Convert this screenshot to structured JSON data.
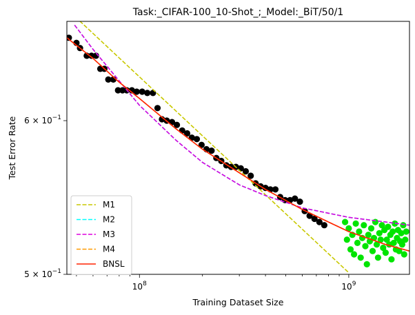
{
  "chart_data": {
    "type": "scatter",
    "title": "Task:_CIFAR-100_10-Shot_;_Model:_BiT/50/1",
    "xlabel": "Training Dataset Size",
    "ylabel": "Test Error Rate",
    "xscale": "log",
    "yscale": "log",
    "xlim": [
      45000000,
      1950000000
    ],
    "ylim": [
      0.5,
      0.675
    ],
    "x_ticks": [
      {
        "value": 100000000,
        "label": "10",
        "exp": "8"
      },
      {
        "value": 1000000000,
        "label": "10",
        "exp": "9"
      }
    ],
    "y_ticks": [
      {
        "value": 0.5,
        "label": "5 × 10",
        "exp": "−1"
      },
      {
        "value": 0.6,
        "label": "6 × 10",
        "exp": "−1"
      }
    ],
    "legend_position": "lower-left",
    "grid": false,
    "series": [
      {
        "name": "M1",
        "kind": "line",
        "style": "dashed",
        "color": "#c8c800",
        "points": [
          [
            45000000,
            0.685
          ],
          [
            1000000000,
            0.501
          ]
        ]
      },
      {
        "name": "M2",
        "kind": "line",
        "style": "dashed",
        "color": "#00ffff",
        "points": [
          [
            49000000,
            0.672
          ],
          [
            60000000,
            0.653
          ],
          [
            80000000,
            0.629
          ],
          [
            100000000,
            0.611
          ],
          [
            150000000,
            0.586
          ],
          [
            200000000,
            0.571
          ],
          [
            300000000,
            0.556
          ],
          [
            400000000,
            0.549
          ],
          [
            600000000,
            0.541
          ],
          [
            1000000000,
            0.535
          ],
          [
            1500000000,
            0.532
          ],
          [
            1950000000,
            0.53
          ]
        ]
      },
      {
        "name": "M3",
        "kind": "line",
        "style": "dashed",
        "color": "#dd00dd",
        "points": [
          [
            49000000,
            0.672
          ],
          [
            60000000,
            0.653
          ],
          [
            80000000,
            0.629
          ],
          [
            100000000,
            0.611
          ],
          [
            150000000,
            0.586
          ],
          [
            200000000,
            0.571
          ],
          [
            300000000,
            0.556
          ],
          [
            400000000,
            0.549
          ],
          [
            600000000,
            0.541
          ],
          [
            1000000000,
            0.535
          ],
          [
            1500000000,
            0.532
          ],
          [
            1950000000,
            0.53
          ]
        ]
      },
      {
        "name": "M4",
        "kind": "line",
        "style": "dashed",
        "color": "#ff9900",
        "points": [
          [
            45000000,
            0.662
          ],
          [
            60000000,
            0.646
          ],
          [
            80000000,
            0.628
          ],
          [
            100000000,
            0.616
          ],
          [
            150000000,
            0.594
          ],
          [
            200000000,
            0.58
          ],
          [
            300000000,
            0.564
          ],
          [
            400000000,
            0.553
          ],
          [
            600000000,
            0.54
          ],
          [
            800000000,
            0.532
          ],
          [
            1000000000,
            0.526
          ],
          [
            1500000000,
            0.518
          ],
          [
            1950000000,
            0.514
          ]
        ]
      },
      {
        "name": "BNSL",
        "kind": "line",
        "style": "solid",
        "color": "#ff2200",
        "points": [
          [
            45000000,
            0.662
          ],
          [
            60000000,
            0.646
          ],
          [
            80000000,
            0.628
          ],
          [
            100000000,
            0.616
          ],
          [
            150000000,
            0.594
          ],
          [
            200000000,
            0.58
          ],
          [
            300000000,
            0.564
          ],
          [
            400000000,
            0.553
          ],
          [
            600000000,
            0.54
          ],
          [
            800000000,
            0.532
          ],
          [
            1000000000,
            0.526
          ],
          [
            1500000000,
            0.518
          ],
          [
            1950000000,
            0.514
          ]
        ]
      },
      {
        "name": "",
        "kind": "scatter",
        "color": "#000000",
        "points": [
          [
            46000000,
            0.662
          ],
          [
            50000000,
            0.658
          ],
          [
            52000000,
            0.654
          ],
          [
            56000000,
            0.648
          ],
          [
            59000000,
            0.648
          ],
          [
            62000000,
            0.648
          ],
          [
            65000000,
            0.638
          ],
          [
            68000000,
            0.638
          ],
          [
            71000000,
            0.63
          ],
          [
            75000000,
            0.63
          ],
          [
            79000000,
            0.622
          ],
          [
            83000000,
            0.622
          ],
          [
            87000000,
            0.622
          ],
          [
            92000000,
            0.622
          ],
          [
            97000000,
            0.621
          ],
          [
            103000000,
            0.621
          ],
          [
            109000000,
            0.62
          ],
          [
            116000000,
            0.62
          ],
          [
            122000000,
            0.609
          ],
          [
            128000000,
            0.601
          ],
          [
            135000000,
            0.6
          ],
          [
            143000000,
            0.599
          ],
          [
            151000000,
            0.597
          ],
          [
            160000000,
            0.593
          ],
          [
            169000000,
            0.591
          ],
          [
            178000000,
            0.588
          ],
          [
            188000000,
            0.587
          ],
          [
            198000000,
            0.583
          ],
          [
            209000000,
            0.58
          ],
          [
            221000000,
            0.579
          ],
          [
            233000000,
            0.574
          ],
          [
            246000000,
            0.572
          ],
          [
            260000000,
            0.569
          ],
          [
            274000000,
            0.568
          ],
          [
            289000000,
            0.568
          ],
          [
            305000000,
            0.567
          ],
          [
            322000000,
            0.565
          ],
          [
            340000000,
            0.562
          ],
          [
            359000000,
            0.557
          ],
          [
            379000000,
            0.555
          ],
          [
            400000000,
            0.554
          ],
          [
            422000000,
            0.553
          ],
          [
            446000000,
            0.553
          ],
          [
            470000000,
            0.548
          ],
          [
            496000000,
            0.546
          ],
          [
            524000000,
            0.546
          ],
          [
            553000000,
            0.547
          ],
          [
            584000000,
            0.545
          ],
          [
            616000000,
            0.539
          ],
          [
            650000000,
            0.536
          ],
          [
            686000000,
            0.534
          ],
          [
            724000000,
            0.532
          ],
          [
            764000000,
            0.53
          ]
        ]
      },
      {
        "name": "",
        "kind": "scatter",
        "color": "#00e400",
        "points": [
          [
            960000000,
            0.532
          ],
          [
            980000000,
            0.521
          ],
          [
            1000000000,
            0.528
          ],
          [
            1020000000,
            0.515
          ],
          [
            1040000000,
            0.524
          ],
          [
            1060000000,
            0.512
          ],
          [
            1080000000,
            0.531
          ],
          [
            1100000000,
            0.519
          ],
          [
            1120000000,
            0.526
          ],
          [
            1140000000,
            0.51
          ],
          [
            1160000000,
            0.522
          ],
          [
            1180000000,
            0.53
          ],
          [
            1200000000,
            0.517
          ],
          [
            1220000000,
            0.506
          ],
          [
            1240000000,
            0.524
          ],
          [
            1260000000,
            0.52
          ],
          [
            1280000000,
            0.528
          ],
          [
            1300000000,
            0.514
          ],
          [
            1320000000,
            0.522
          ],
          [
            1340000000,
            0.532
          ],
          [
            1360000000,
            0.518
          ],
          [
            1380000000,
            0.51
          ],
          [
            1400000000,
            0.525
          ],
          [
            1420000000,
            0.521
          ],
          [
            1440000000,
            0.53
          ],
          [
            1460000000,
            0.516
          ],
          [
            1480000000,
            0.527
          ],
          [
            1500000000,
            0.513
          ],
          [
            1520000000,
            0.521
          ],
          [
            1540000000,
            0.529
          ],
          [
            1560000000,
            0.518
          ],
          [
            1580000000,
            0.524
          ],
          [
            1600000000,
            0.509
          ],
          [
            1620000000,
            0.526
          ],
          [
            1640000000,
            0.519
          ],
          [
            1660000000,
            0.531
          ],
          [
            1680000000,
            0.515
          ],
          [
            1700000000,
            0.522
          ],
          [
            1720000000,
            0.527
          ],
          [
            1740000000,
            0.514
          ],
          [
            1760000000,
            0.52
          ],
          [
            1780000000,
            0.525
          ],
          [
            1800000000,
            0.518
          ],
          [
            1820000000,
            0.53
          ],
          [
            1840000000,
            0.512
          ],
          [
            1860000000,
            0.521
          ],
          [
            1880000000,
            0.526
          ]
        ]
      }
    ]
  }
}
